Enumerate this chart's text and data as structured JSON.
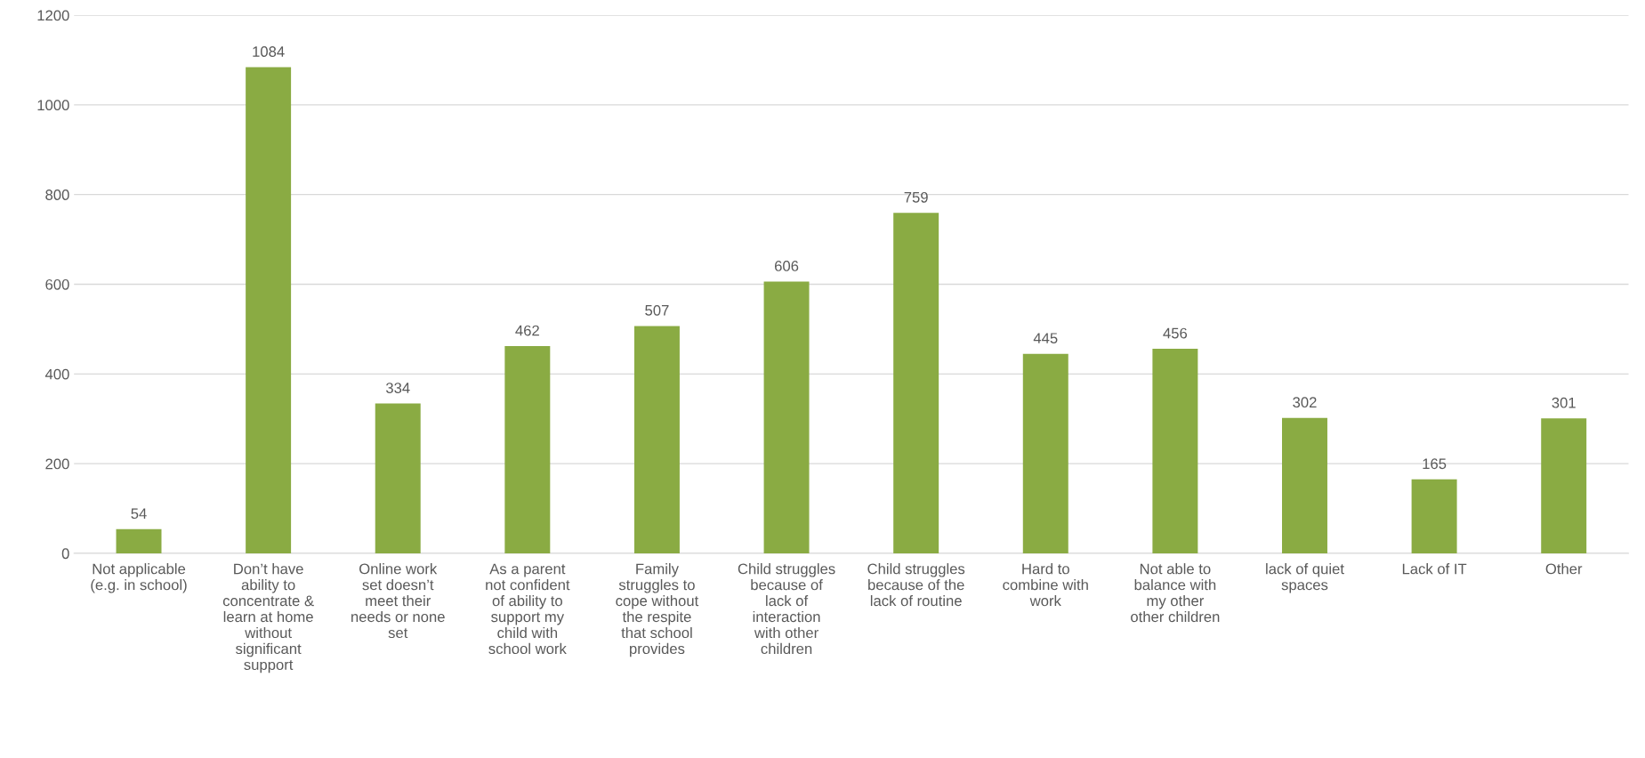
{
  "chart_data": {
    "type": "bar",
    "categories": [
      "Not applicable\n(e.g. in school)",
      "Don’t have\nability to\nconcentrate &\nlearn at home\nwithout\nsignificant\nsupport",
      "Online work\nset doesn’t\nmeet their\nneeds or none\nset",
      "As a parent\nnot confident\nof ability to\nsupport my\nchild with\nschool work",
      "Family\nstruggles to\ncope without\nthe respite\nthat school\nprovides",
      "Child struggles\nbecause of\nlack of\ninteraction\nwith other\nchildren",
      "Child struggles\nbecause of the\nlack of routine",
      "Hard to\ncombine with\nwork",
      "Not able to\nbalance with\nmy other\nother children",
      "lack of quiet\nspaces",
      "Lack of IT",
      "Other"
    ],
    "values": [
      54,
      1084,
      334,
      462,
      507,
      606,
      759,
      445,
      456,
      302,
      165,
      301
    ],
    "color": "#8aab43",
    "ylim": [
      0,
      1200
    ],
    "yticks": [
      0,
      200,
      400,
      600,
      800,
      1000,
      1200
    ],
    "grid": "y",
    "data_labels": true,
    "legend": false
  }
}
